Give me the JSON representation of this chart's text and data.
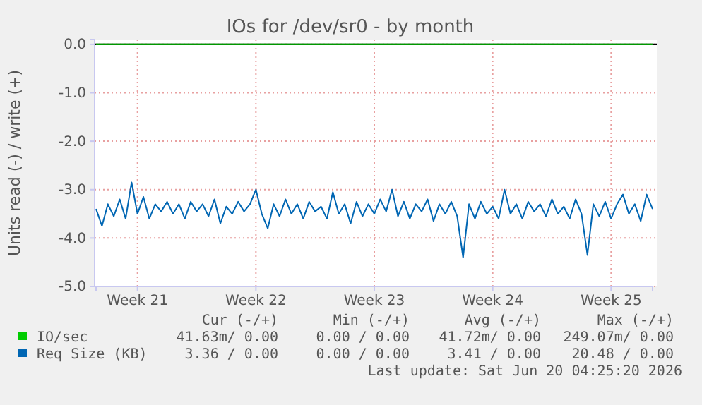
{
  "chart_data": {
    "type": "line",
    "title": "IOs for /dev/sr0 - by month",
    "ylabel": "Units read (-) / write (+)",
    "categories": [
      null,
      null,
      null,
      null,
      null,
      null,
      null,
      "Week 21",
      null,
      null,
      null,
      null,
      null,
      null,
      null,
      null,
      null,
      null,
      null,
      null,
      null,
      null,
      null,
      null,
      null,
      null,
      null,
      "Week 22",
      null,
      null,
      null,
      null,
      null,
      null,
      null,
      null,
      null,
      null,
      null,
      null,
      null,
      null,
      null,
      null,
      null,
      null,
      null,
      "Week 23",
      null,
      null,
      null,
      null,
      null,
      null,
      null,
      null,
      null,
      null,
      null,
      null,
      null,
      null,
      null,
      null,
      null,
      null,
      null,
      "Week 24",
      null,
      null,
      null,
      null,
      null,
      null,
      null,
      null,
      null,
      null,
      null,
      null,
      null,
      null,
      null,
      null,
      null,
      null,
      null,
      "Week 25",
      null,
      null,
      null,
      null,
      null,
      null,
      null
    ],
    "ylim": [
      -5,
      0.1
    ],
    "yticks": [
      {
        "value": 0,
        "label": "0.0"
      },
      {
        "value": -1,
        "label": "-1.0"
      },
      {
        "value": -2,
        "label": "-2.0"
      },
      {
        "value": -3,
        "label": "-3.0"
      },
      {
        "value": -4,
        "label": "-4.0"
      },
      {
        "value": -5,
        "label": "-5.0"
      }
    ],
    "grid": true,
    "legend": "bottom",
    "ref_lines": [
      {
        "axis": "y",
        "value": 0,
        "color": "#000000"
      }
    ],
    "series": [
      {
        "name": "IO/sec",
        "color": "#00cc00",
        "values": [
          0,
          0,
          0,
          0,
          0,
          0,
          0,
          0,
          0,
          0,
          0,
          0,
          0,
          0,
          0,
          0,
          0,
          0,
          0,
          0,
          0,
          0,
          0,
          0,
          0,
          0,
          0,
          0,
          0,
          0,
          0,
          0,
          0,
          0,
          0,
          0,
          0,
          0,
          0,
          0,
          0,
          0,
          0,
          0,
          0,
          0,
          0,
          0,
          0,
          0,
          0,
          0,
          0,
          0,
          0,
          0,
          0,
          0,
          0,
          0,
          0,
          0,
          0,
          0,
          0,
          0,
          0,
          0,
          0,
          0,
          0,
          0,
          0,
          0,
          0,
          0,
          0,
          0,
          0,
          0,
          0,
          0,
          0,
          0,
          0,
          0,
          0,
          0,
          0,
          0,
          0,
          0,
          0,
          0,
          0
        ]
      },
      {
        "name": "Req Size (KB)",
        "color": "#0066b3",
        "values": [
          -3.4,
          -3.75,
          -3.3,
          -3.55,
          -3.2,
          -3.6,
          -2.85,
          -3.5,
          -3.15,
          -3.6,
          -3.3,
          -3.45,
          -3.25,
          -3.5,
          -3.3,
          -3.6,
          -3.25,
          -3.45,
          -3.3,
          -3.55,
          -3.2,
          -3.7,
          -3.35,
          -3.5,
          -3.25,
          -3.45,
          -3.3,
          -3.0,
          -3.5,
          -3.8,
          -3.3,
          -3.55,
          -3.2,
          -3.5,
          -3.3,
          -3.6,
          -3.25,
          -3.45,
          -3.35,
          -3.6,
          -3.05,
          -3.5,
          -3.3,
          -3.7,
          -3.25,
          -3.55,
          -3.3,
          -3.5,
          -3.2,
          -3.45,
          -3.0,
          -3.55,
          -3.25,
          -3.6,
          -3.3,
          -3.45,
          -3.2,
          -3.65,
          -3.3,
          -3.5,
          -3.25,
          -3.55,
          -4.4,
          -3.3,
          -3.6,
          -3.25,
          -3.5,
          -3.35,
          -3.6,
          -3.0,
          -3.5,
          -3.3,
          -3.6,
          -3.25,
          -3.45,
          -3.3,
          -3.55,
          -3.2,
          -3.5,
          -3.35,
          -3.6,
          -3.2,
          -3.5,
          -4.35,
          -3.3,
          -3.55,
          -3.25,
          -3.6,
          -3.3,
          -3.1,
          -3.5,
          -3.3,
          -3.65,
          -3.1,
          -3.4
        ]
      }
    ],
    "annotations": [
      "Cur (-/+)",
      "Min (-/+)",
      "Avg (-/+)",
      "Max (-/+)",
      "41.63m/ 0.00",
      "0.00 / 0.00",
      "41.72m/ 0.00",
      "249.07m/ 0.00",
      "3.36 / 0.00",
      "0.00 / 0.00",
      "3.41 / 0.00",
      "20.48 / 0.00",
      "Last update: Sat Jun 20 04:25:20 2026"
    ]
  }
}
